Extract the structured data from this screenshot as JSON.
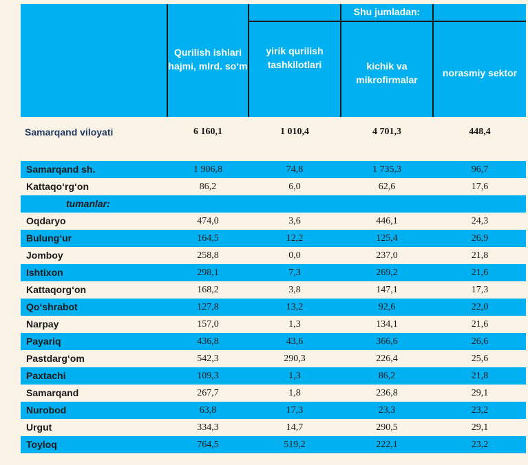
{
  "header": {
    "group_label": "Shu jumladan:",
    "col1": "Qurilish ishlari hajmi, mlrd. so‘m",
    "col2": "yirik qurilish tashkilotlari",
    "col3": "kichik va mikrofirmalar",
    "col4": "norasmiy sektor"
  },
  "total": {
    "name": "Samarqand viloyati",
    "v1": "6 160,1",
    "v2": "1 010,4",
    "v3": "4 701,3",
    "v4": "448,4"
  },
  "cities": [
    {
      "name": "Samarqand  sh.",
      "v1": "1 906,8",
      "v2": "74,8",
      "v3": "1 735,3",
      "v4": "96,7"
    },
    {
      "name": "Kattaqo‘rg‘on",
      "v1": "86,2",
      "v2": "6,0",
      "v3": "62,6",
      "v4": "17,6"
    }
  ],
  "section_label": "tumanlar:",
  "districts": [
    {
      "name": "Oqdaryo",
      "v1": "474,0",
      "v2": "3,6",
      "v3": "446,1",
      "v4": "24,3"
    },
    {
      "name": "Bulung‘ur",
      "v1": "164,5",
      "v2": "12,2",
      "v3": "125,4",
      "v4": "26,9"
    },
    {
      "name": "Jomboy",
      "v1": "258,8",
      "v2": "0,0",
      "v3": "237,0",
      "v4": "21,8"
    },
    {
      "name": "Ishtixon",
      "v1": "298,1",
      "v2": "7,3",
      "v3": "269,2",
      "v4": "21,6"
    },
    {
      "name": "Kattaqorg‘on",
      "v1": "168,2",
      "v2": "3,8",
      "v3": "147,1",
      "v4": "17,3"
    },
    {
      "name": "Qo‘shrabot",
      "v1": "127,8",
      "v2": "13,2",
      "v3": "92,6",
      "v4": "22,0"
    },
    {
      "name": "Narpay",
      "v1": "157,0",
      "v2": "1,3",
      "v3": "134,1",
      "v4": "21,6"
    },
    {
      "name": "Payariq",
      "v1": "436,8",
      "v2": "43,6",
      "v3": "366,6",
      "v4": "26,6"
    },
    {
      "name": "Pastdarg‘om",
      "v1": "542,3",
      "v2": "290,3",
      "v3": "226,4",
      "v4": "25,6"
    },
    {
      "name": "Paxtachi",
      "v1": "109,3",
      "v2": "1,3",
      "v3": "86,2",
      "v4": "21,8"
    },
    {
      "name": "Samarqand",
      "v1": "267,7",
      "v2": "1,8",
      "v3": "236,8",
      "v4": "29,1"
    },
    {
      "name": "Nurobod",
      "v1": "63,8",
      "v2": "17,3",
      "v3": "23,3",
      "v4": "23,2"
    },
    {
      "name": "Urgut",
      "v1": "334,3",
      "v2": "14,7",
      "v3": "290,5",
      "v4": "29,1"
    },
    {
      "name": "Toyloq",
      "v1": "764,5",
      "v2": "519,2",
      "v3": "222,1",
      "v4": "23,2"
    }
  ],
  "colors": {
    "header_bg": "#00b0f0",
    "row_blue": "#00b0f0",
    "page_bg": "#fbf3e6",
    "total_text": "#1f3864"
  }
}
